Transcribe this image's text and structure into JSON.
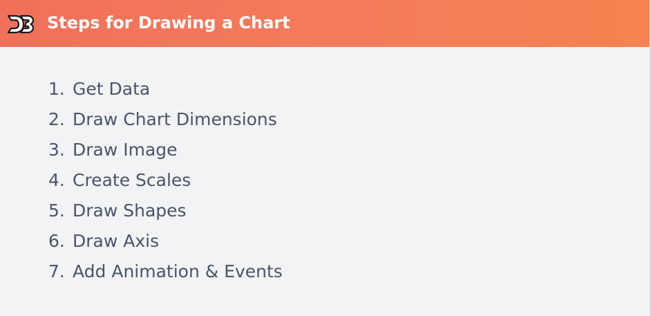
{
  "header": {
    "logo_icon": "d3-logo-icon",
    "title": "Steps for Drawing a Chart",
    "gradient_start": "#f0705a",
    "gradient_end": "#f5824f"
  },
  "steps": [
    {
      "num": "1.",
      "text": "Get Data"
    },
    {
      "num": "2.",
      "text": "Draw Chart Dimensions"
    },
    {
      "num": "3.",
      "text": "Draw Image"
    },
    {
      "num": "4.",
      "text": "Create Scales"
    },
    {
      "num": "5.",
      "text": "Draw Shapes"
    },
    {
      "num": "6.",
      "text": "Draw Axis"
    },
    {
      "num": "7.",
      "text": "Add Animation & Events"
    }
  ],
  "colors": {
    "background": "#f2f3f5",
    "text": "#4a5568"
  }
}
